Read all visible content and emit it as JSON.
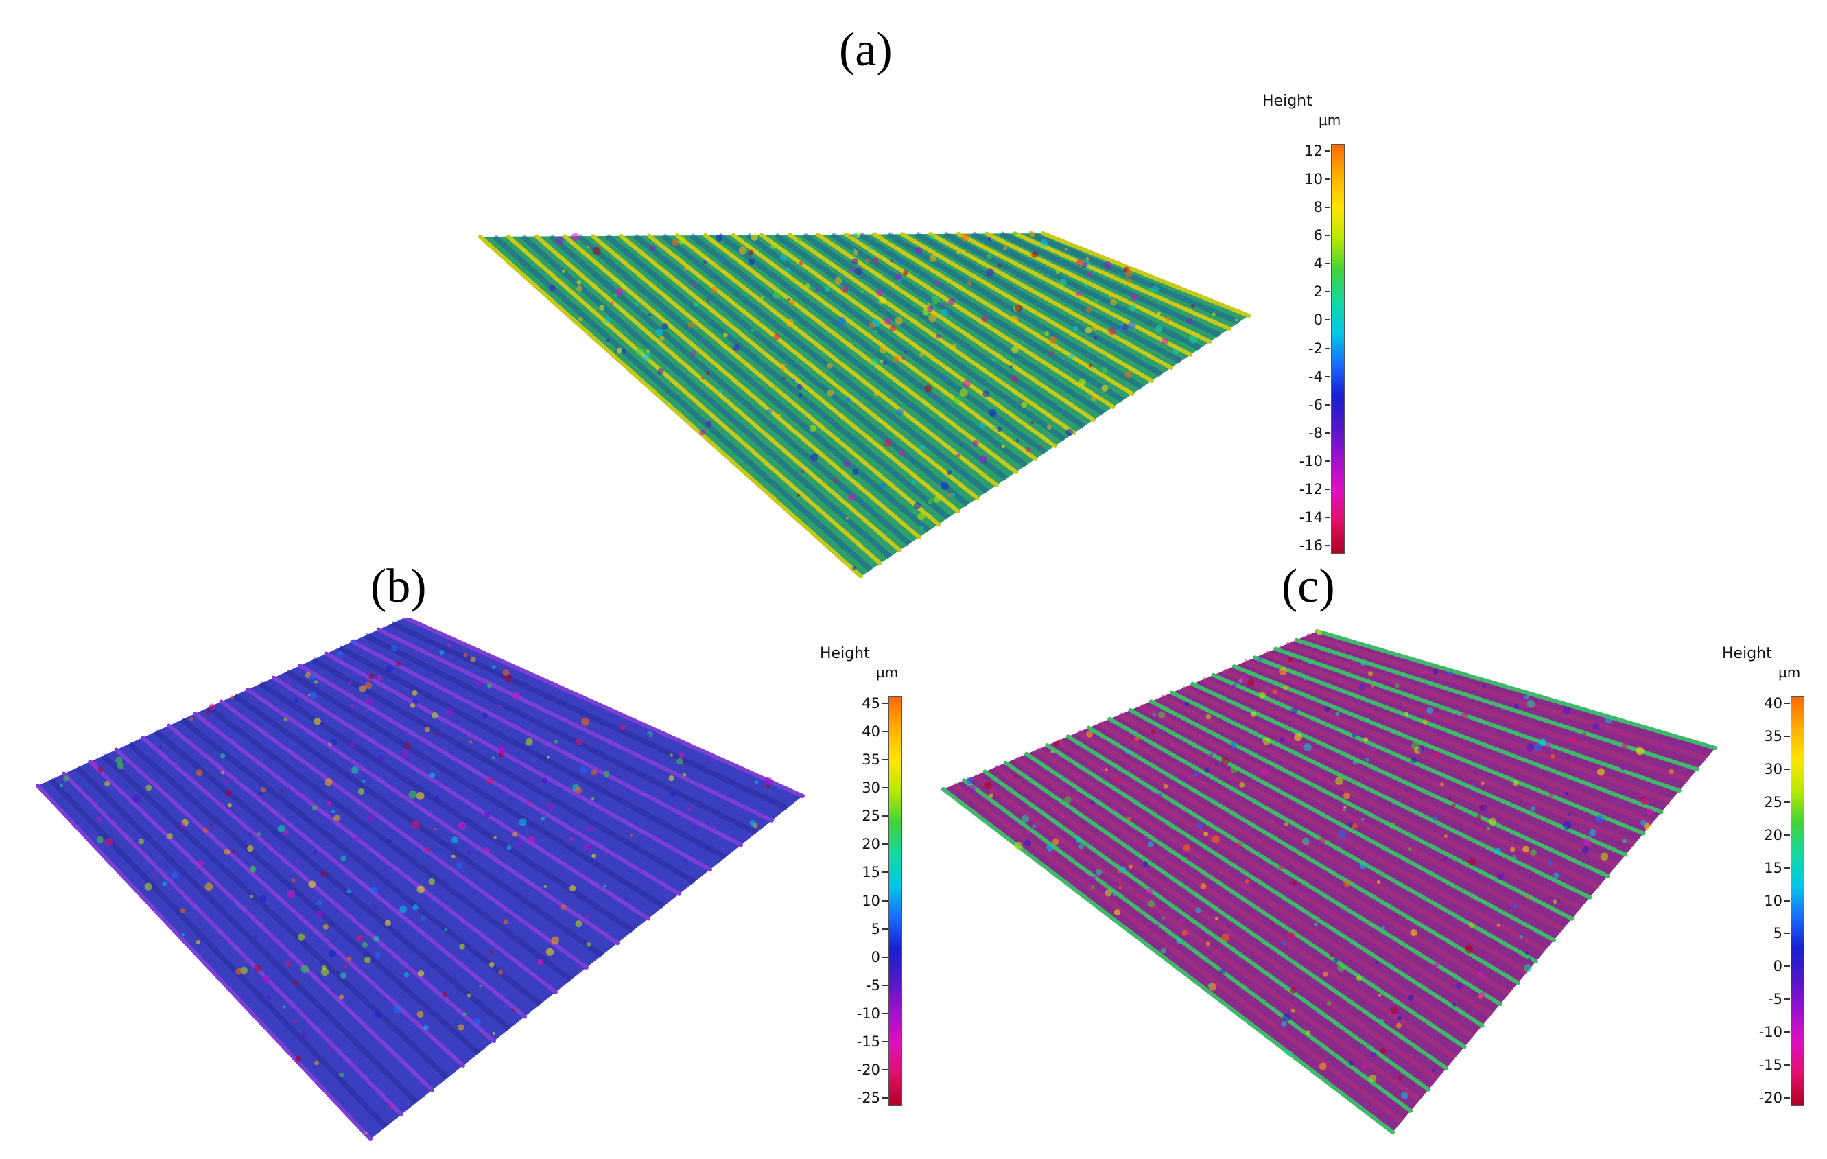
{
  "panels": [
    {
      "label": "(a)",
      "legend_title": "Height",
      "legend_unit": "µm",
      "ticks": [
        "12",
        "10",
        "8",
        "6",
        "4",
        "2",
        "0",
        "-2",
        "-4",
        "-6",
        "-8",
        "-10",
        "-12",
        "-14",
        "-16"
      ],
      "surface_color": "#2e9e6a",
      "ridge_color": "#c7c91a",
      "valley_color": "#1e5fa0",
      "ridges": 20
    },
    {
      "label": "(b)",
      "legend_title": "Height",
      "legend_unit": "µm",
      "ticks": [
        "45",
        "40",
        "35",
        "30",
        "25",
        "20",
        "15",
        "10",
        "5",
        "0",
        "-5",
        "-10",
        "-15",
        "-20",
        "-25"
      ],
      "surface_color": "#3b3fbf",
      "ridge_color": "#7b3fd6",
      "valley_color": "#2a2a9a",
      "ridges": 14
    },
    {
      "label": "(c)",
      "legend_title": "Height",
      "legend_unit": "µm",
      "ticks": [
        "40",
        "35",
        "30",
        "25",
        "20",
        "15",
        "10",
        "5",
        "0",
        "-5",
        "-10",
        "-15",
        "-20"
      ],
      "surface_color": "#8a2a8a",
      "ridge_color": "#3fb86a",
      "valley_color": "#b0307a",
      "ridges": 18
    }
  ],
  "colormap": [
    "#ff6a00",
    "#ffb000",
    "#ffe500",
    "#b7e800",
    "#3fd23a",
    "#12d9a0",
    "#00c8e8",
    "#1a6cff",
    "#1820d0",
    "#5018c8",
    "#a010d0",
    "#e010c0",
    "#e0106a",
    "#b00020"
  ]
}
